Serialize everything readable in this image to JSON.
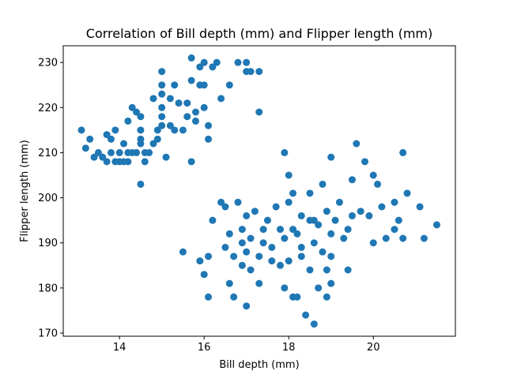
{
  "chart_data": {
    "type": "scatter",
    "title": "Correlation of Bill depth (mm) and Flipper length (mm)",
    "x_label": "Bill depth (mm)",
    "y_label": "Flipper length (mm)",
    "color": "#1f77b4",
    "xlim": [
      12.67,
      21.94
    ],
    "ylim": [
      169.3,
      233.7
    ],
    "xticks": [
      14,
      16,
      18,
      20
    ],
    "yticks": [
      170,
      180,
      190,
      200,
      210,
      220,
      230
    ],
    "x": [
      13.1,
      13.2,
      13.3,
      13.4,
      13.5,
      13.6,
      13.7,
      13.7,
      13.8,
      13.8,
      13.9,
      13.9,
      14.0,
      14.0,
      14.1,
      14.1,
      14.2,
      14.2,
      14.2,
      14.3,
      14.3,
      14.4,
      14.4,
      14.5,
      14.5,
      14.5,
      14.5,
      14.5,
      14.6,
      14.6,
      14.7,
      14.8,
      14.8,
      14.9,
      15.0,
      15.0,
      15.0,
      15.0,
      15.0,
      15.0,
      15.1,
      15.2,
      15.3,
      15.4,
      15.5,
      15.6,
      15.7,
      15.7,
      15.7,
      15.8,
      15.9,
      15.9,
      16.0,
      16.0,
      16.1,
      16.1,
      16.2,
      16.3,
      16.4,
      16.6,
      16.8,
      17.0,
      17.0,
      17.1,
      17.3,
      17.3,
      15.3,
      15.6,
      14.9,
      15.2,
      16.0,
      15.8,
      15.5,
      15.9,
      16.0,
      16.1,
      16.1,
      16.2,
      16.4,
      16.5,
      16.5,
      16.6,
      16.6,
      16.7,
      16.7,
      16.8,
      16.9,
      16.9,
      17.0,
      17.0,
      17.0,
      17.1,
      17.1,
      17.2,
      17.3,
      17.3,
      17.4,
      17.5,
      17.6,
      17.7,
      17.8,
      17.8,
      17.9,
      17.9,
      18.0,
      18.0,
      18.1,
      18.1,
      18.1,
      18.2,
      18.2,
      18.3,
      18.3,
      18.4,
      18.5,
      18.5,
      18.6,
      18.6,
      18.7,
      18.7,
      18.8,
      18.8,
      18.9,
      18.9,
      19.0,
      19.0,
      19.0,
      19.1,
      19.2,
      19.3,
      19.4,
      19.5,
      19.5,
      19.6,
      19.7,
      19.8,
      19.9,
      20.0,
      20.0,
      20.2,
      20.3,
      20.5,
      20.6,
      20.7,
      20.7,
      20.8,
      21.1,
      21.2,
      21.5,
      17.9,
      18.0,
      18.5,
      19.0,
      16.9,
      17.4,
      18.9,
      18.6,
      19.4,
      17.6,
      18.3,
      20.1,
      20.5
    ],
    "values": [
      215,
      211,
      213,
      209,
      210,
      209,
      208,
      214,
      213,
      210,
      208,
      215,
      208,
      210,
      208,
      212,
      208,
      210,
      217,
      220,
      210,
      219,
      210,
      203,
      212,
      213,
      215,
      218,
      210,
      208,
      210,
      222,
      212,
      215,
      228,
      225,
      223,
      220,
      218,
      216,
      209,
      222,
      225,
      221,
      215,
      221,
      231,
      226,
      208,
      219,
      225,
      229,
      230,
      225,
      213,
      216,
      229,
      230,
      222,
      225,
      230,
      230,
      228,
      228,
      228,
      219,
      215,
      218,
      213,
      216,
      220,
      217,
      188,
      186,
      183,
      178,
      187,
      195,
      199,
      198,
      189,
      192,
      181,
      187,
      178,
      199,
      190,
      185,
      176,
      196,
      188,
      184,
      191,
      197,
      187,
      181,
      190,
      195,
      189,
      198,
      193,
      185,
      191,
      180,
      199,
      186,
      193,
      201,
      178,
      192,
      178,
      196,
      187,
      174,
      195,
      184,
      172,
      190,
      194,
      180,
      203,
      188,
      197,
      184,
      209,
      192,
      181,
      195,
      199,
      191,
      184,
      204,
      196,
      212,
      197,
      208,
      196,
      205,
      190,
      198,
      191,
      199,
      195,
      210,
      191,
      201,
      198,
      191,
      194,
      210,
      205,
      201,
      187,
      193,
      193,
      178,
      195,
      193,
      186,
      189,
      203,
      193
    ]
  }
}
